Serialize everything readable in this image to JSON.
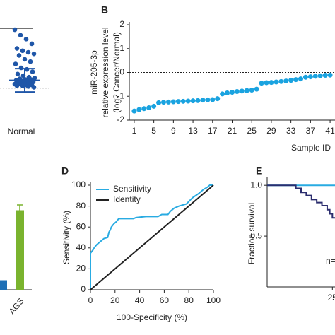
{
  "chart_data": [
    {
      "panel_type": "dot",
      "type": "dot",
      "category": "Normal",
      "color": "#1f56a8",
      "ylim": [
        0,
        10
      ],
      "values": [
        8.9,
        8.2,
        7.7,
        7.1,
        6.5,
        6.2,
        6.0,
        5.8,
        5.6,
        5.1,
        4.8,
        4.5,
        4.0,
        3.8,
        3.5,
        3.2,
        3.0,
        2.8,
        2.7,
        2.6,
        2.5,
        2.5,
        2.4,
        2.3,
        2.3,
        2.2,
        2.1,
        2.1,
        2.0,
        1.9,
        1.9,
        1.8,
        1.8,
        1.7,
        1.7,
        1.6,
        1.5
      ],
      "mean": 2.4,
      "sd": 1.5,
      "reference_line": 1.4
    },
    {
      "type": "scatter",
      "panel": "B",
      "xlabel": "Sample ID",
      "ylabel": [
        "miR-205-3p",
        "relative expression level",
        "(log2 Cancer/Normal)"
      ],
      "color": "#1aa3e0",
      "xlim": [
        0,
        42
      ],
      "ylim": [
        -2,
        2
      ],
      "xticks": [
        1,
        5,
        9,
        13,
        17,
        21,
        25,
        29,
        33,
        37,
        41
      ],
      "yticks": [
        -2,
        -1,
        0,
        1,
        2
      ],
      "reference_line": 0,
      "x": [
        1,
        2,
        3,
        4,
        5,
        6,
        7,
        8,
        9,
        10,
        11,
        12,
        13,
        14,
        15,
        16,
        17,
        18,
        19,
        20,
        21,
        22,
        23,
        24,
        25,
        26,
        27,
        28,
        29,
        30,
        31,
        32,
        33,
        34,
        35,
        36,
        37,
        38,
        39,
        40,
        41
      ],
      "values": [
        -1.62,
        -1.56,
        -1.52,
        -1.48,
        -1.42,
        -1.27,
        -1.25,
        -1.24,
        -1.23,
        -1.22,
        -1.21,
        -1.2,
        -1.19,
        -1.18,
        -1.16,
        -1.15,
        -1.14,
        -1.1,
        -0.9,
        -0.86,
        -0.83,
        -0.8,
        -0.78,
        -0.76,
        -0.74,
        -0.7,
        -0.45,
        -0.43,
        -0.42,
        -0.4,
        -0.38,
        -0.36,
        -0.33,
        -0.3,
        -0.27,
        -0.2,
        -0.18,
        -0.16,
        -0.14,
        -0.12,
        -0.11
      ]
    },
    {
      "type": "bar",
      "categories": [
        null,
        "AGS"
      ],
      "values": [
        9,
        75
      ],
      "errors": [
        null,
        5
      ],
      "colors": [
        "#1f6fb5",
        "#7ab32e"
      ],
      "ylim": [
        0,
        100
      ]
    },
    {
      "type": "line",
      "panel": "D",
      "xlabel": "100-Specificity (%)",
      "ylabel": "Sensitivity (%)",
      "xlim": [
        0,
        100
      ],
      "ylim": [
        0,
        100
      ],
      "xticks": [
        0,
        20,
        40,
        60,
        80,
        100
      ],
      "yticks": [
        0,
        20,
        40,
        60,
        80,
        100
      ],
      "legend": "top-left",
      "series": [
        {
          "name": "Sensitivity",
          "color": "#29abe2",
          "x": [
            0,
            0,
            2,
            3,
            5,
            7,
            9,
            11,
            14,
            15,
            16,
            17,
            19,
            21,
            23,
            35,
            37,
            45,
            55,
            58,
            63,
            65,
            68,
            72,
            78,
            83,
            88,
            92,
            95,
            97,
            100
          ],
          "values": [
            0,
            35,
            38,
            40,
            43,
            45,
            47,
            49,
            50,
            55,
            57,
            60,
            63,
            65,
            68,
            68,
            69,
            70,
            70,
            72,
            72,
            75,
            78,
            80,
            82,
            88,
            92,
            96,
            98,
            100,
            100
          ]
        },
        {
          "name": "Identity",
          "color": "#222222",
          "x": [
            0,
            100
          ],
          "values": [
            0,
            100
          ]
        }
      ]
    },
    {
      "type": "line",
      "panel": "E",
      "ylabel": "Fraction survival",
      "annotation": "n=",
      "xlim": [
        0,
        26
      ],
      "ylim": [
        0,
        1.05
      ],
      "xticks": [
        25
      ],
      "yticks": [
        {
          "value": 0.5,
          "label": "0.5"
        },
        {
          "value": 1,
          "label": "1.0"
        }
      ],
      "series": [
        {
          "color": "#29abe2",
          "x": [
            0,
            26
          ],
          "values": [
            1,
            1
          ]
        },
        {
          "color": "#2b2d6e",
          "x": [
            0,
            11,
            11,
            13,
            13,
            15,
            15,
            17,
            17,
            19,
            19,
            21,
            21,
            23,
            23,
            24,
            24,
            25,
            25,
            26
          ],
          "values": [
            1,
            1,
            0.97,
            0.97,
            0.93,
            0.93,
            0.9,
            0.9,
            0.86,
            0.86,
            0.83,
            0.83,
            0.8,
            0.8,
            0.76,
            0.76,
            0.72,
            0.72,
            0.68,
            0.68
          ]
        }
      ]
    }
  ]
}
